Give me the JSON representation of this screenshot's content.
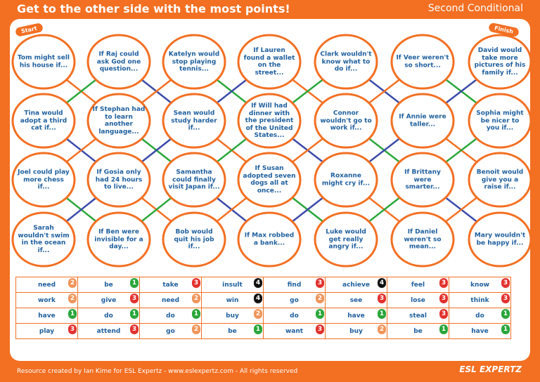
{
  "header": {
    "title": "Get to the other side with the most points!",
    "subtitle": "Second Conditional"
  },
  "labels": {
    "start": "Start",
    "finish": "Finish"
  },
  "colors": {
    "orange": "#f36f22",
    "blue": "#3b4aa8",
    "green": "#2aa63a",
    "text": "#1f5f9e",
    "pt1": "#2aa63a",
    "pt2": "#f0945a",
    "pt3": "#e2312d",
    "pt4": "#111111"
  },
  "board": {
    "rows": [
      [
        "Tom might sell his house if...",
        "If Raj could ask God one question...",
        "Katelyn would stop playing tennis...",
        "If Lauren found a wallet on the street...",
        "Clark wouldn't know what to do if...",
        "If Veer weren't so short...",
        "David would take more pictures of his family if..."
      ],
      [
        "Tina would adopt a third cat if...",
        "If Stephan had to learn another language...",
        "Sean would study harder if...",
        "If Will had dinner with the president of the United States...",
        "Connor wouldn't go to work if...",
        "If Annie were taller...",
        "Sophia might be nicer to you if..."
      ],
      [
        "Joel could play more chess if...",
        "If Gosia only had 24 hours to live...",
        "Samantha could finally visit Japan if...",
        "If Susan adopted seven dogs all at once...",
        "Roxanne might cry if...",
        "If Brittany were smarter...",
        "Benoit would give you a raise if..."
      ],
      [
        "Sarah wouldn't swim in the ocean if...",
        "If Ben were invisible for a day...",
        "Bob would quit his job if...",
        "If Max robbed a bank...",
        "Luke would get really angry if...",
        "If Daniel weren't so mean...",
        "Mary wouldn't be happy if..."
      ]
    ]
  },
  "verbs": [
    [
      {
        "w": "need",
        "p": 2
      },
      {
        "w": "be",
        "p": 1
      },
      {
        "w": "take",
        "p": 3
      },
      {
        "w": "insult",
        "p": 4
      },
      {
        "w": "find",
        "p": 3
      },
      {
        "w": "achieve",
        "p": 4
      },
      {
        "w": "feel",
        "p": 3
      },
      {
        "w": "know",
        "p": 3
      }
    ],
    [
      {
        "w": "work",
        "p": 2
      },
      {
        "w": "give",
        "p": 3
      },
      {
        "w": "need",
        "p": 2
      },
      {
        "w": "win",
        "p": 4
      },
      {
        "w": "go",
        "p": 2
      },
      {
        "w": "see",
        "p": 3
      },
      {
        "w": "lose",
        "p": 3
      },
      {
        "w": "think",
        "p": 3
      }
    ],
    [
      {
        "w": "have",
        "p": 1
      },
      {
        "w": "do",
        "p": 1
      },
      {
        "w": "do",
        "p": 1
      },
      {
        "w": "buy",
        "p": 2
      },
      {
        "w": "do",
        "p": 1
      },
      {
        "w": "have",
        "p": 1
      },
      {
        "w": "steal",
        "p": 3
      },
      {
        "w": "do",
        "p": 1
      }
    ],
    [
      {
        "w": "play",
        "p": 3
      },
      {
        "w": "attend",
        "p": 3
      },
      {
        "w": "go",
        "p": 2
      },
      {
        "w": "be",
        "p": 1
      },
      {
        "w": "want",
        "p": 3
      },
      {
        "w": "buy",
        "p": 2
      },
      {
        "w": "be",
        "p": 1
      },
      {
        "w": "have",
        "p": 1
      }
    ]
  ],
  "footer": {
    "credit": "Resource created by Ian Kime for ESL Expertz - www.eslexpertz.com - All rights reserved",
    "logo": "ESL EXPERTZ"
  }
}
